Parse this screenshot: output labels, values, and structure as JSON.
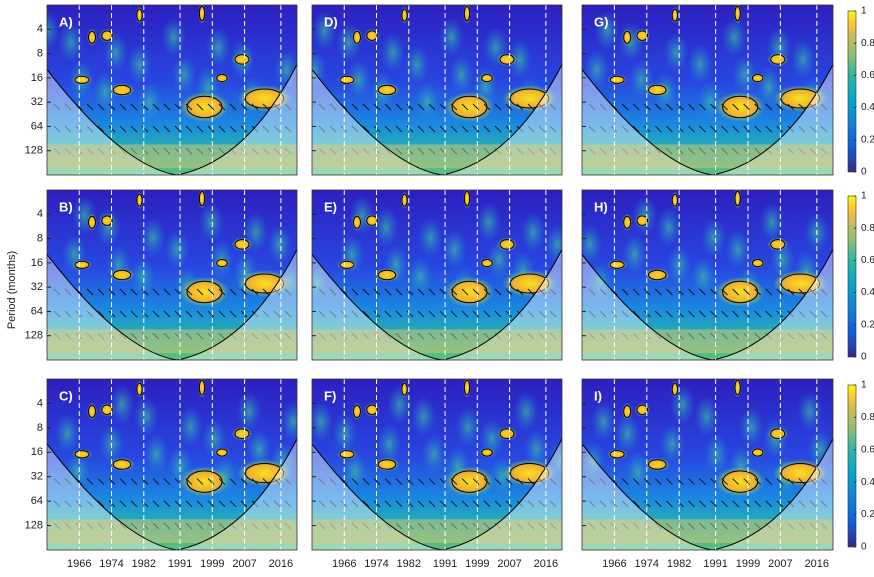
{
  "chart_data": {
    "type": "wavelet-coherence",
    "ylabel": "Period (months)",
    "panels": [
      "A)",
      "D)",
      "G)",
      "B)",
      "E)",
      "H)",
      "C)",
      "F)",
      "I)"
    ],
    "xlim": [
      1958,
      2020
    ],
    "xticks": [
      1966,
      1974,
      1982,
      1991,
      1999,
      2007,
      2016
    ],
    "ylim": [
      2,
      256
    ],
    "yticks": [
      4,
      8,
      16,
      32,
      64,
      128
    ],
    "log_y": true,
    "colorbar": {
      "lim": [
        0,
        1
      ],
      "ticks": [
        0,
        0.2,
        0.4,
        0.6,
        0.8,
        1
      ]
    }
  }
}
